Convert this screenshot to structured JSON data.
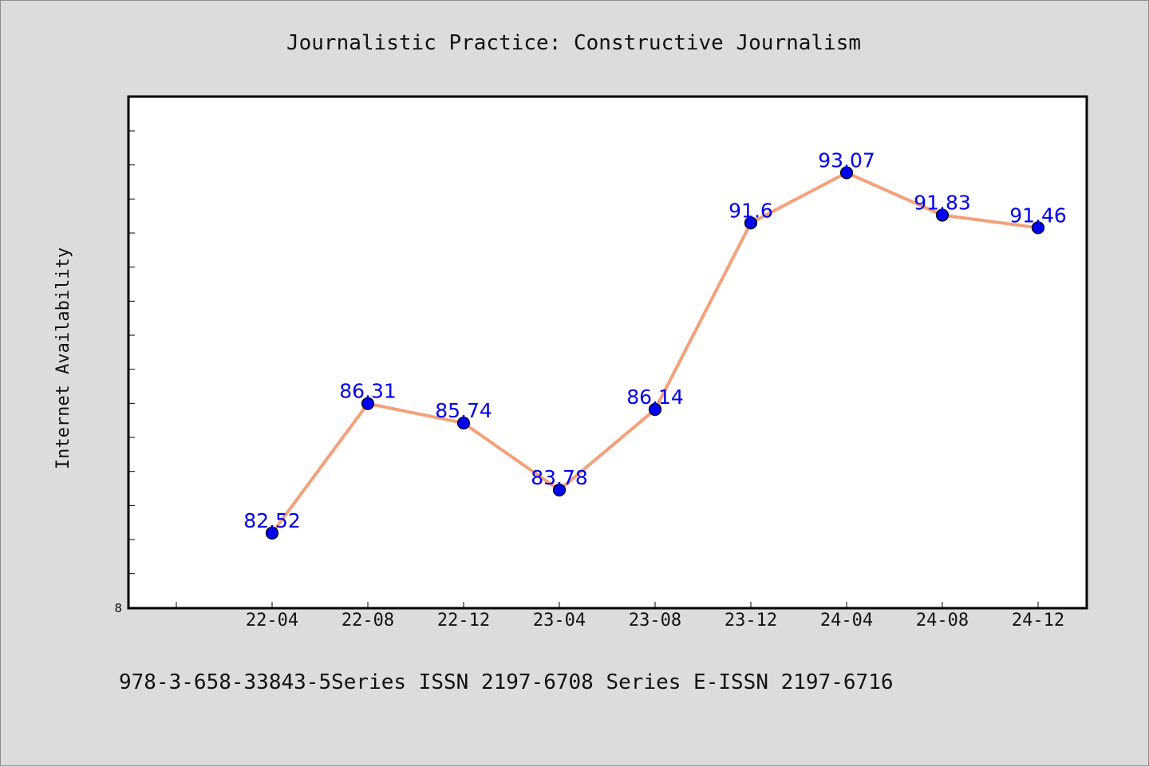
{
  "chart_data": {
    "type": "line",
    "title": "Journalistic Practice: Constructive Journalism",
    "ylabel": "Internet Availability",
    "xlabel": "",
    "categories": [
      "22-04",
      "22-08",
      "22-12",
      "23-04",
      "23-08",
      "23-12",
      "24-04",
      "24-08",
      "24-12"
    ],
    "values": [
      82.52,
      86.31,
      85.74,
      83.78,
      86.14,
      91.6,
      93.07,
      91.83,
      91.46
    ],
    "data_labels": [
      "82.52",
      "86.31",
      "85.74",
      "83.78",
      "86.14",
      "91.6",
      "93.07",
      "91.83",
      "91.46"
    ],
    "y_tick_label": "8",
    "ylim": [
      80.32,
      95.3
    ],
    "grid": false,
    "line_color": "#f4a07a",
    "marker_color": "#0000ee",
    "label_color": "#0000ee"
  },
  "footer": "978-3-658-33843-5Series ISSN 2197-6708 Series E-ISSN 2197-6716"
}
